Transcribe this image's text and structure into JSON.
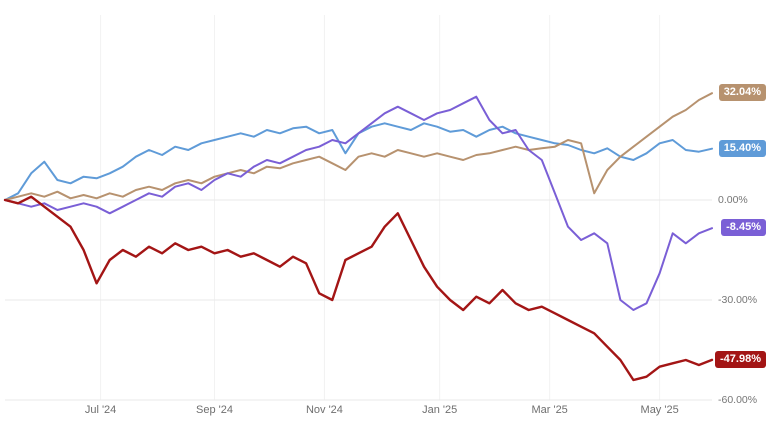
{
  "chart_data": {
    "type": "line",
    "title": "",
    "x_unit": "weeks",
    "x_range": [
      0,
      54
    ],
    "x_ticks": [
      {
        "t": 7.3,
        "label": "Jul '24"
      },
      {
        "t": 16.0,
        "label": "Sep '24"
      },
      {
        "t": 24.4,
        "label": "Nov '24"
      },
      {
        "t": 33.2,
        "label": "Jan '25"
      },
      {
        "t": 41.6,
        "label": "Mar '25"
      },
      {
        "t": 50.0,
        "label": "May '25"
      }
    ],
    "y_axis": {
      "min": -60,
      "max": 35,
      "ticks": [
        {
          "value": 0,
          "label": "0.00%"
        },
        {
          "value": -30,
          "label": "-30.00%"
        },
        {
          "value": -60,
          "label": "-60.00%"
        }
      ]
    },
    "grid": {
      "horizontal": true,
      "vertical": true,
      "h_color": "#e9e9e9",
      "v_color": "#f2f2f2"
    },
    "legend_position": "none",
    "series": [
      {
        "name": "blue-series",
        "color": "#5f9bd8",
        "final_label": "15.40%",
        "stroke_width": 2,
        "values": [
          0,
          2,
          8,
          11.5,
          6,
          5,
          7,
          6.5,
          8,
          10,
          13,
          15,
          13.5,
          16,
          15,
          17,
          18,
          19,
          20,
          19,
          21,
          20,
          21.5,
          22,
          20,
          21,
          14,
          20,
          22,
          23,
          22,
          21,
          23,
          22,
          20.5,
          21,
          19,
          21,
          22,
          20,
          19,
          18,
          17,
          16.5,
          15,
          14,
          15.5,
          13,
          12,
          14,
          17,
          18,
          15,
          14.5,
          15.4
        ]
      },
      {
        "name": "tan-series",
        "color": "#b7926f",
        "final_label": "32.04%",
        "stroke_width": 2,
        "values": [
          0,
          1,
          2,
          1,
          2.5,
          0.5,
          1.5,
          0.5,
          2,
          1,
          3,
          4,
          3,
          5,
          6,
          5,
          7,
          8,
          9,
          8,
          10,
          9.5,
          11,
          12,
          13,
          11,
          9,
          13,
          14,
          13,
          15,
          14,
          13,
          14,
          13,
          12,
          13.5,
          14,
          15,
          16,
          15,
          15.5,
          16,
          18,
          17,
          2,
          9,
          13,
          16,
          19,
          22,
          25,
          27,
          30,
          32.04
        ]
      },
      {
        "name": "purple-series",
        "color": "#7a5fd6",
        "final_label": "-8.45%",
        "stroke_width": 2,
        "values": [
          0,
          -1,
          -2,
          -1,
          -3,
          -2,
          -1,
          -2,
          -4,
          -2,
          0,
          2,
          1,
          4,
          5,
          3,
          6,
          8,
          7,
          10,
          12,
          11,
          13,
          15,
          16,
          18,
          17,
          20,
          23,
          26,
          28,
          26,
          24,
          26,
          27,
          29,
          31,
          24,
          20,
          21,
          15,
          12,
          2,
          -8,
          -12,
          -10,
          -13,
          -30,
          -33,
          -31,
          -22,
          -10,
          -13,
          -10,
          -8.45
        ]
      },
      {
        "name": "red-series",
        "color": "#a31515",
        "final_label": "-47.98%",
        "stroke_width": 2.4,
        "values": [
          0,
          -1,
          1,
          -2,
          -5,
          -8,
          -15,
          -25,
          -18,
          -15,
          -17,
          -14,
          -16,
          -13,
          -15,
          -14,
          -16,
          -15,
          -17,
          -16,
          -18,
          -20,
          -17,
          -19,
          -28,
          -30,
          -18,
          -16,
          -14,
          -8,
          -4,
          -12,
          -20,
          -26,
          -30,
          -33,
          -29,
          -31,
          -27,
          -31,
          -33,
          -32,
          -34,
          -36,
          -38,
          -40,
          -44,
          -48,
          -54,
          -53,
          -50,
          -49,
          -48,
          -49.5,
          -47.98
        ]
      }
    ]
  }
}
